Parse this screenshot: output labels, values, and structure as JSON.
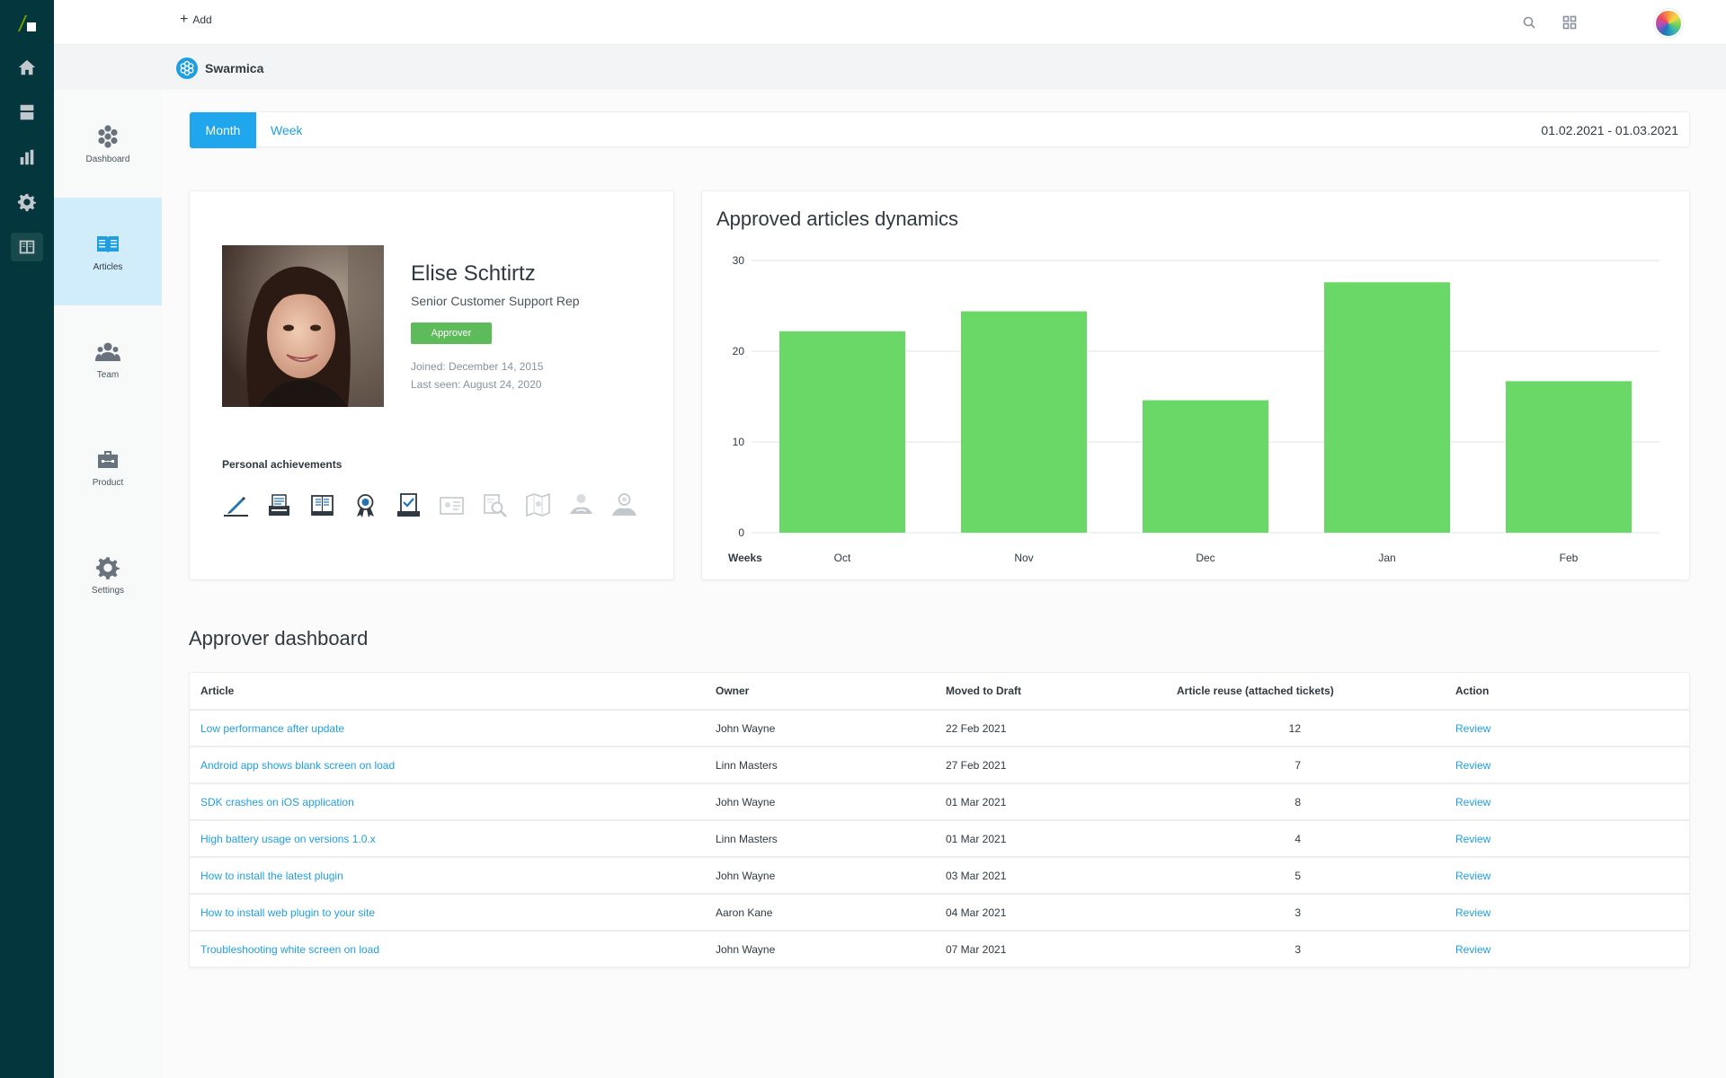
{
  "topbar": {
    "add_label": "Add"
  },
  "brand": {
    "name": "Swarmica"
  },
  "subnav": [
    {
      "label": "Dashboard"
    },
    {
      "label": "Articles"
    },
    {
      "label": "Team"
    },
    {
      "label": "Product"
    },
    {
      "label": "Settings"
    }
  ],
  "tabs": {
    "month": "Month",
    "week": "Week",
    "active": "Month"
  },
  "date_range": "01.02.2021 - 01.03.2021",
  "profile": {
    "name": "Elise Schtirtz",
    "role": "Senior Customer Support Rep",
    "badge": "Approver",
    "joined": "Joined: December 14, 2015",
    "last_seen": "Last seen: August 24, 2020",
    "achievements_title": "Personal achievements",
    "achievements": [
      {
        "icon": "pen-icon",
        "earned": true
      },
      {
        "icon": "typewriter-icon",
        "earned": true
      },
      {
        "icon": "book-icon",
        "earned": true
      },
      {
        "icon": "award-icon",
        "earned": true
      },
      {
        "icon": "checklist-icon",
        "earned": true
      },
      {
        "icon": "id-card-icon",
        "earned": false
      },
      {
        "icon": "magnifier-doc-icon",
        "earned": false
      },
      {
        "icon": "map-icon",
        "earned": false
      },
      {
        "icon": "handshake-icon",
        "earned": false
      },
      {
        "icon": "team-hands-icon",
        "earned": false
      }
    ]
  },
  "chart_data": {
    "type": "bar",
    "title": "Approved articles dynamics",
    "xlabel": "Weeks",
    "ylabel": "",
    "categories": [
      "Oct",
      "Nov",
      "Dec",
      "Jan",
      "Feb"
    ],
    "values": [
      22.2,
      24.4,
      14.6,
      27.6,
      16.7
    ],
    "ylim": [
      0,
      30
    ],
    "yticks": [
      0,
      10,
      20,
      30
    ],
    "color": "#6ad866",
    "grid": true
  },
  "approver": {
    "title": "Approver dashboard",
    "columns": [
      "Article",
      "Owner",
      "Moved to Draft",
      "Article reuse (attached tickets)",
      "Action"
    ],
    "rows": [
      {
        "article": "Low performance after update",
        "owner": "John Wayne",
        "moved": "22 Feb 2021",
        "reuse": "12",
        "action": "Review"
      },
      {
        "article": "Android app shows blank screen on load",
        "owner": "Linn Masters",
        "moved": "27 Feb 2021",
        "reuse": "7",
        "action": "Review"
      },
      {
        "article": "SDK crashes on iOS application",
        "owner": "John Wayne",
        "moved": "01 Mar 2021",
        "reuse": "8",
        "action": "Review"
      },
      {
        "article": "High battery usage on versions 1.0.x",
        "owner": "Linn Masters",
        "moved": "01 Mar 2021",
        "reuse": "4",
        "action": "Review"
      },
      {
        "article": "How to install the latest plugin",
        "owner": "John Wayne",
        "moved": "03 Mar 2021",
        "reuse": "5",
        "action": "Review"
      },
      {
        "article": "How to install web plugin to your site",
        "owner": "Aaron Kane",
        "moved": "04 Mar 2021",
        "reuse": "3",
        "action": "Review"
      },
      {
        "article": "Troubleshooting white screen on load",
        "owner": "John Wayne",
        "moved": "07 Mar 2021",
        "reuse": "3",
        "action": "Review"
      }
    ]
  }
}
